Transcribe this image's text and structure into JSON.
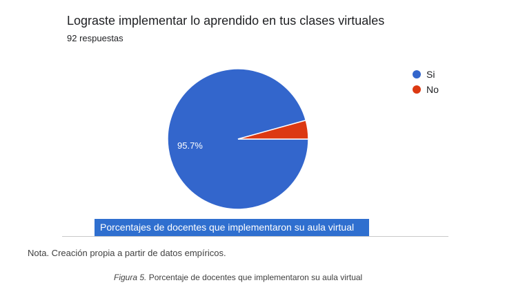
{
  "chart_data": {
    "type": "pie",
    "title": "Lograste implementar lo aprendido en tus clases virtuales",
    "subtitle": "92 respuestas",
    "categories": [
      "Si",
      "No"
    ],
    "values": [
      95.7,
      4.3
    ],
    "colors": [
      "#3366cc",
      "#dc3912"
    ],
    "data_labels": [
      "95.7%",
      ""
    ],
    "legend_position": "right"
  },
  "caption_box": {
    "text": "Porcentajes de docentes que implementaron su aula virtual",
    "color": "#2f6fcf"
  },
  "note": "Nota. Creación propia a partir de datos empíricos.",
  "figure_caption": {
    "label": "Figura 5.",
    "text": " Porcentaje de docentes que implementaron su aula virtual"
  }
}
